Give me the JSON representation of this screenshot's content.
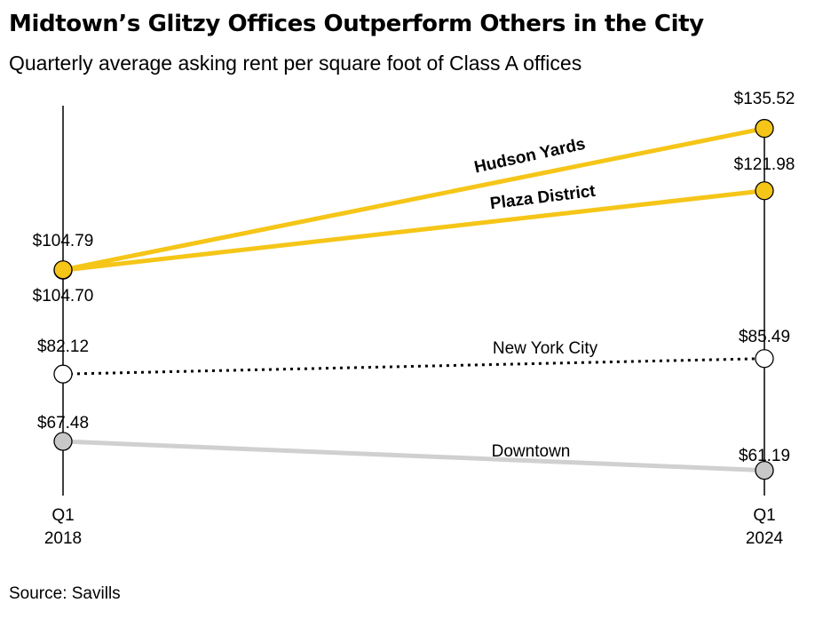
{
  "title": "Midtown’s Glitzy Offices Outperform Others in the City",
  "subtitle": "Quarterly average asking rent per square foot of Class A offices",
  "source": "Source: Savills",
  "chart_data": {
    "type": "line",
    "x_categories": [
      {
        "line1": "Q1",
        "line2": "2018"
      },
      {
        "line1": "Q1",
        "line2": "2024"
      }
    ],
    "ylim": [
      55,
      140
    ],
    "grid": false,
    "legend": "none",
    "series": [
      {
        "name": "Hudson Yards",
        "values": [
          104.79,
          135.52
        ],
        "value_labels": [
          "$104.79",
          "$135.52"
        ],
        "line_color": "#f5c518",
        "marker_color": "#f5c518",
        "line_style": "solid",
        "label_style": "bold"
      },
      {
        "name": "Plaza District",
        "values": [
          104.7,
          121.98
        ],
        "value_labels": [
          "$104.70",
          "$121.98"
        ],
        "line_color": "#f5c518",
        "marker_color": "#f5c518",
        "line_style": "solid",
        "label_style": "bold"
      },
      {
        "name": "New York City",
        "values": [
          82.12,
          85.49
        ],
        "value_labels": [
          "$82.12",
          "$85.49"
        ],
        "line_color": "#000000",
        "marker_color": "#ffffff",
        "line_style": "dotted",
        "label_style": "normal"
      },
      {
        "name": "Downtown",
        "values": [
          67.48,
          61.19
        ],
        "value_labels": [
          "$67.48",
          "$61.19"
        ],
        "line_color": "#d0d0d0",
        "marker_color": "#c8c8c8",
        "line_style": "solid",
        "label_style": "normal"
      }
    ]
  }
}
